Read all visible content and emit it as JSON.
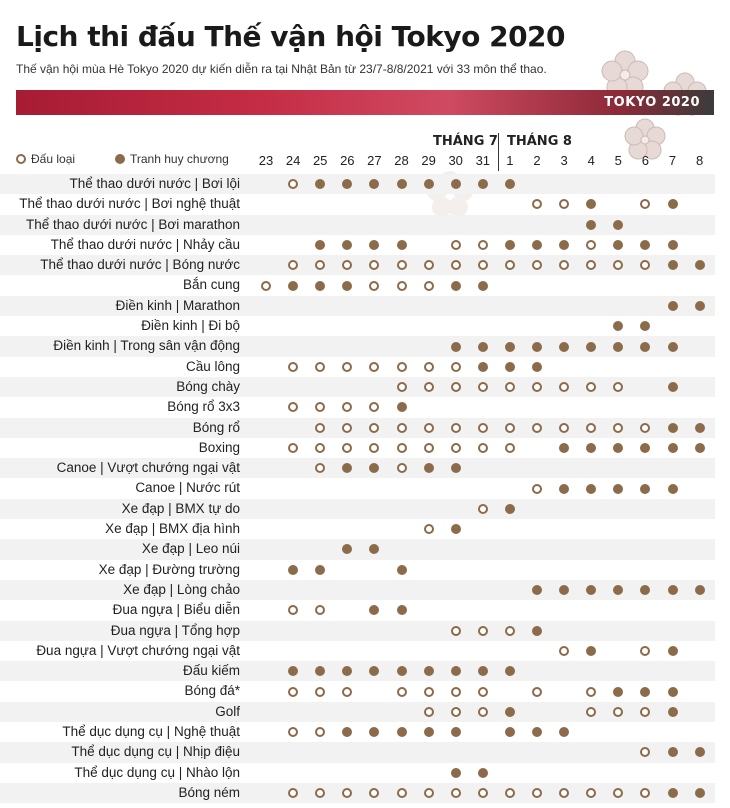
{
  "header": {
    "title": "Lịch thi đấu Thế vận hội Tokyo 2020",
    "subtitle": "Thế vận hội mùa Hè Tokyo 2020 dự kiến diễn ra tại Nhật Bản từ 23/7-8/8/2021 với 33 môn thể thao.",
    "banner_label": "TOKYO 2020"
  },
  "colors": {
    "accent_red": "#b4233c",
    "dot": "#8b6b4a",
    "stripe": "#f2f2f2"
  },
  "legend": {
    "qualifier": "Đấu loại",
    "medal": "Tranh huy chương"
  },
  "months": {
    "july": "THÁNG 7",
    "august": "THÁNG 8"
  },
  "days": [
    "23",
    "24",
    "25",
    "26",
    "27",
    "28",
    "29",
    "30",
    "31",
    "1",
    "2",
    "3",
    "4",
    "5",
    "6",
    "7",
    "8"
  ],
  "schedule": [
    {
      "sport": "Thể thao dưới nước | Bơi lội",
      "days": [
        0,
        1,
        2,
        2,
        2,
        2,
        2,
        2,
        2,
        2,
        0,
        0,
        0,
        0,
        0,
        0,
        0
      ]
    },
    {
      "sport": "Thể thao dưới nước | Bơi nghệ thuật",
      "days": [
        0,
        0,
        0,
        0,
        0,
        0,
        0,
        0,
        0,
        0,
        1,
        1,
        2,
        0,
        1,
        2,
        0
      ]
    },
    {
      "sport": "Thể thao dưới nước | Bơi marathon",
      "days": [
        0,
        0,
        0,
        0,
        0,
        0,
        0,
        0,
        0,
        0,
        0,
        0,
        2,
        2,
        0,
        0,
        0
      ]
    },
    {
      "sport": "Thể thao dưới nước | Nhảy cầu",
      "days": [
        0,
        0,
        2,
        2,
        2,
        2,
        0,
        1,
        1,
        2,
        2,
        2,
        1,
        2,
        2,
        2,
        0
      ]
    },
    {
      "sport": "Thể thao dưới nước | Bóng nước",
      "days": [
        0,
        1,
        1,
        1,
        1,
        1,
        1,
        1,
        1,
        1,
        1,
        1,
        1,
        1,
        1,
        2,
        2
      ]
    },
    {
      "sport": "Bắn cung",
      "days": [
        1,
        2,
        2,
        2,
        1,
        1,
        1,
        2,
        2,
        0,
        0,
        0,
        0,
        0,
        0,
        0,
        0
      ]
    },
    {
      "sport": "Điền kinh | Marathon",
      "days": [
        0,
        0,
        0,
        0,
        0,
        0,
        0,
        0,
        0,
        0,
        0,
        0,
        0,
        0,
        0,
        2,
        2
      ]
    },
    {
      "sport": "Điền kinh | Đi bộ",
      "days": [
        0,
        0,
        0,
        0,
        0,
        0,
        0,
        0,
        0,
        0,
        0,
        0,
        0,
        2,
        2,
        0,
        0
      ]
    },
    {
      "sport": "Điền kinh | Trong sân vận động",
      "days": [
        0,
        0,
        0,
        0,
        0,
        0,
        0,
        2,
        2,
        2,
        2,
        2,
        2,
        2,
        2,
        2,
        0
      ]
    },
    {
      "sport": "Cầu lông",
      "days": [
        0,
        1,
        1,
        1,
        1,
        1,
        1,
        1,
        2,
        2,
        2,
        0,
        0,
        0,
        0,
        0,
        0
      ]
    },
    {
      "sport": "Bóng chày",
      "days": [
        0,
        0,
        0,
        0,
        0,
        1,
        1,
        1,
        1,
        1,
        1,
        1,
        1,
        1,
        0,
        2,
        0
      ]
    },
    {
      "sport": "Bóng rổ 3x3",
      "days": [
        0,
        1,
        1,
        1,
        1,
        2,
        0,
        0,
        0,
        0,
        0,
        0,
        0,
        0,
        0,
        0,
        0
      ]
    },
    {
      "sport": "Bóng rổ",
      "days": [
        0,
        0,
        1,
        1,
        1,
        1,
        1,
        1,
        1,
        1,
        1,
        1,
        1,
        1,
        1,
        2,
        2
      ]
    },
    {
      "sport": "Boxing",
      "days": [
        0,
        1,
        1,
        1,
        1,
        1,
        1,
        1,
        1,
        1,
        0,
        2,
        2,
        2,
        2,
        2,
        2
      ]
    },
    {
      "sport": "Canoe | Vượt chướng ngại vật",
      "days": [
        0,
        0,
        1,
        2,
        2,
        1,
        2,
        2,
        0,
        0,
        0,
        0,
        0,
        0,
        0,
        0,
        0
      ]
    },
    {
      "sport": "Canoe | Nước rút",
      "days": [
        0,
        0,
        0,
        0,
        0,
        0,
        0,
        0,
        0,
        0,
        1,
        2,
        2,
        2,
        2,
        2,
        0
      ]
    },
    {
      "sport": "Xe đạp | BMX tự do",
      "days": [
        0,
        0,
        0,
        0,
        0,
        0,
        0,
        0,
        1,
        2,
        0,
        0,
        0,
        0,
        0,
        0,
        0
      ]
    },
    {
      "sport": "Xe đạp | BMX địa hình",
      "days": [
        0,
        0,
        0,
        0,
        0,
        0,
        1,
        2,
        0,
        0,
        0,
        0,
        0,
        0,
        0,
        0,
        0
      ]
    },
    {
      "sport": "Xe đạp | Leo núi",
      "days": [
        0,
        0,
        0,
        2,
        2,
        0,
        0,
        0,
        0,
        0,
        0,
        0,
        0,
        0,
        0,
        0,
        0
      ]
    },
    {
      "sport": "Xe đạp | Đường trường",
      "days": [
        0,
        2,
        2,
        0,
        0,
        2,
        0,
        0,
        0,
        0,
        0,
        0,
        0,
        0,
        0,
        0,
        0
      ]
    },
    {
      "sport": "Xe đạp | Lòng chảo",
      "days": [
        0,
        0,
        0,
        0,
        0,
        0,
        0,
        0,
        0,
        0,
        2,
        2,
        2,
        2,
        2,
        2,
        2
      ]
    },
    {
      "sport": "Đua ngựa | Biểu diễn",
      "days": [
        0,
        1,
        1,
        0,
        2,
        2,
        0,
        0,
        0,
        0,
        0,
        0,
        0,
        0,
        0,
        0,
        0
      ]
    },
    {
      "sport": "Đua ngựa | Tổng hợp",
      "days": [
        0,
        0,
        0,
        0,
        0,
        0,
        0,
        1,
        1,
        1,
        2,
        0,
        0,
        0,
        0,
        0,
        0
      ]
    },
    {
      "sport": "Đua ngựa | Vượt chướng ngại vật",
      "days": [
        0,
        0,
        0,
        0,
        0,
        0,
        0,
        0,
        0,
        0,
        0,
        1,
        2,
        0,
        1,
        2,
        0
      ]
    },
    {
      "sport": "Đấu kiếm",
      "days": [
        0,
        2,
        2,
        2,
        2,
        2,
        2,
        2,
        2,
        2,
        0,
        0,
        0,
        0,
        0,
        0,
        0
      ]
    },
    {
      "sport": "Bóng đá*",
      "days": [
        0,
        1,
        1,
        1,
        0,
        1,
        1,
        1,
        1,
        0,
        1,
        0,
        1,
        2,
        2,
        2,
        0
      ]
    },
    {
      "sport": "Golf",
      "days": [
        0,
        0,
        0,
        0,
        0,
        0,
        1,
        1,
        1,
        2,
        0,
        0,
        1,
        1,
        1,
        2,
        0
      ]
    },
    {
      "sport": "Thể dục dụng cụ | Nghệ thuật",
      "days": [
        0,
        1,
        1,
        2,
        2,
        2,
        2,
        2,
        0,
        2,
        2,
        2,
        0,
        0,
        0,
        0,
        0
      ]
    },
    {
      "sport": "Thể dục dụng cụ | Nhịp điệu",
      "days": [
        0,
        0,
        0,
        0,
        0,
        0,
        0,
        0,
        0,
        0,
        0,
        0,
        0,
        0,
        1,
        2,
        2
      ]
    },
    {
      "sport": "Thể dục dụng cụ | Nhào lộn",
      "days": [
        0,
        0,
        0,
        0,
        0,
        0,
        0,
        2,
        2,
        0,
        0,
        0,
        0,
        0,
        0,
        0,
        0
      ]
    },
    {
      "sport": "Bóng ném",
      "days": [
        0,
        1,
        1,
        1,
        1,
        1,
        1,
        1,
        1,
        1,
        1,
        1,
        1,
        1,
        1,
        2,
        2
      ]
    }
  ]
}
